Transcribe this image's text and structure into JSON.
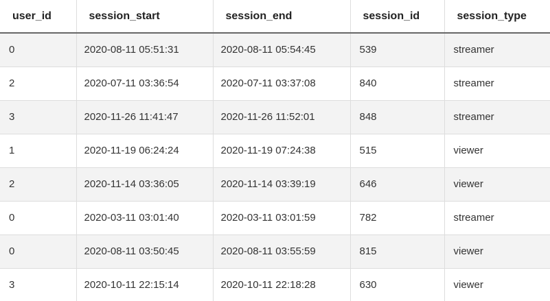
{
  "table": {
    "columns": [
      "user_id",
      "session_start",
      "session_end",
      "session_id",
      "session_type"
    ],
    "rows": [
      [
        "0",
        "2020-08-11 05:51:31",
        "2020-08-11 05:54:45",
        "539",
        "streamer"
      ],
      [
        "2",
        "2020-07-11 03:36:54",
        "2020-07-11 03:37:08",
        "840",
        "streamer"
      ],
      [
        "3",
        "2020-11-26 11:41:47",
        "2020-11-26 11:52:01",
        "848",
        "streamer"
      ],
      [
        "1",
        "2020-11-19 06:24:24",
        "2020-11-19 07:24:38",
        "515",
        "viewer"
      ],
      [
        "2",
        "2020-11-14 03:36:05",
        "2020-11-14 03:39:19",
        "646",
        "viewer"
      ],
      [
        "0",
        "2020-03-11 03:01:40",
        "2020-03-11 03:01:59",
        "782",
        "streamer"
      ],
      [
        "0",
        "2020-08-11 03:50:45",
        "2020-08-11 03:55:59",
        "815",
        "viewer"
      ],
      [
        "3",
        "2020-10-11 22:15:14",
        "2020-10-11 22:18:28",
        "630",
        "viewer"
      ]
    ]
  },
  "colors": {
    "stripe": "#f3f3f3",
    "header_rule": "#666666",
    "grid": "#dddddd"
  }
}
